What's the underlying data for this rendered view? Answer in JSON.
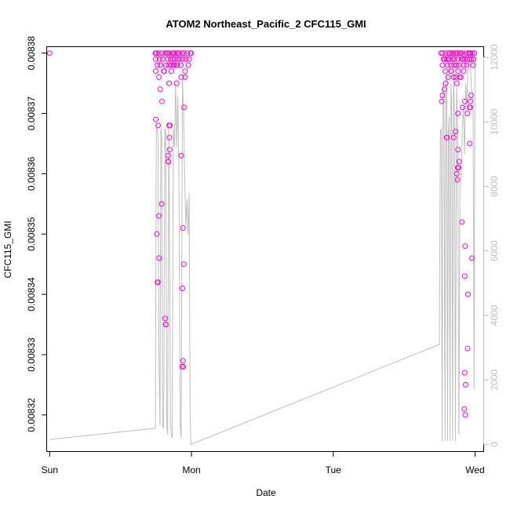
{
  "chart_data": {
    "type": "scatter",
    "title": "ATOM2 Northeast_Pacific_2 CFC115_GMI",
    "xlabel": "Date",
    "ylabel": "CFC115_GMI",
    "x_ticks": [
      "Sun",
      "Mon",
      "Tue",
      "Wed"
    ],
    "x_tick_values": [
      0,
      1,
      2,
      3
    ],
    "x_range": [
      -0.0185,
      3.0585
    ],
    "ylim": [
      0.008314,
      0.008381
    ],
    "y_ticks": [
      "0.00832",
      "0.00833",
      "0.00834",
      "0.00835",
      "0.00836",
      "0.00837",
      "0.00838"
    ],
    "y_tick_values": [
      0.00832,
      0.00833,
      0.00834,
      0.00835,
      0.00836,
      0.00837,
      0.00838
    ],
    "y2_range": [
      -210,
      12320
    ],
    "y2_ticks": [
      "0",
      "2000",
      "4000",
      "6000",
      "8000",
      "10000",
      "12000"
    ],
    "y2_tick_values": [
      0,
      2000,
      4000,
      6000,
      8000,
      10000,
      12000
    ],
    "grid": false,
    "series": [
      {
        "role": "points",
        "color": "#ff00cc",
        "points": [
          [
            0.0,
            0.00838
          ],
          [
            0.745,
            0.00838
          ],
          [
            0.748,
            0.008379
          ],
          [
            0.752,
            0.00838
          ],
          [
            0.76,
            0.008378
          ],
          [
            0.768,
            0.00838
          ],
          [
            0.775,
            0.008379
          ],
          [
            0.782,
            0.008378
          ],
          [
            0.79,
            0.00838
          ],
          [
            0.798,
            0.008379
          ],
          [
            0.805,
            0.008377
          ],
          [
            0.812,
            0.00838
          ],
          [
            0.82,
            0.008378
          ],
          [
            0.826,
            0.00838
          ],
          [
            0.832,
            0.008379
          ],
          [
            0.84,
            0.008378
          ],
          [
            0.846,
            0.00838
          ],
          [
            0.852,
            0.008379
          ],
          [
            0.858,
            0.008378
          ],
          [
            0.866,
            0.00838
          ],
          [
            0.872,
            0.00838
          ],
          [
            0.88,
            0.008379
          ],
          [
            0.888,
            0.00838
          ],
          [
            0.895,
            0.008378
          ],
          [
            0.902,
            0.008379
          ],
          [
            0.91,
            0.00838
          ],
          [
            0.918,
            0.008379
          ],
          [
            0.925,
            0.008378
          ],
          [
            0.932,
            0.00838
          ],
          [
            0.94,
            0.008379
          ],
          [
            0.948,
            0.00838
          ],
          [
            0.955,
            0.008377
          ],
          [
            0.962,
            0.008379
          ],
          [
            0.97,
            0.00838
          ],
          [
            0.978,
            0.008378
          ],
          [
            0.985,
            0.008379
          ],
          [
            0.993,
            0.00838
          ],
          [
            0.998,
            0.00838
          ],
          [
            0.878,
            0.008378
          ],
          [
            0.904,
            0.00838
          ],
          [
            0.83,
            0.00838
          ],
          [
            0.868,
            0.008379
          ],
          [
            0.748,
            0.008377
          ],
          [
            0.77,
            0.008376
          ],
          [
            0.808,
            0.008377
          ],
          [
            0.858,
            0.008377
          ],
          [
            0.895,
            0.008375
          ],
          [
            0.928,
            0.008376
          ],
          [
            0.78,
            0.008374
          ],
          [
            0.842,
            0.008375
          ],
          [
            0.874,
            0.008378
          ],
          [
            0.955,
            0.008376
          ],
          [
            0.898,
            0.008378
          ],
          [
            0.748,
            0.008369
          ],
          [
            0.765,
            0.008368
          ],
          [
            0.792,
            0.008372
          ],
          [
            0.845,
            0.008366
          ],
          [
            0.848,
            0.008368
          ],
          [
            0.847,
            0.008364
          ],
          [
            0.836,
            0.008363
          ],
          [
            0.838,
            0.008362
          ],
          [
            0.948,
            0.008371
          ],
          [
            0.928,
            0.008363
          ],
          [
            0.842,
            0.008368
          ],
          [
            0.836,
            0.008362
          ],
          [
            0.79,
            0.008355
          ],
          [
            0.77,
            0.008353
          ],
          [
            0.756,
            0.00835
          ],
          [
            0.772,
            0.008346
          ],
          [
            0.762,
            0.008342
          ],
          [
            0.76,
            0.008342
          ],
          [
            0.764,
            0.008342
          ],
          [
            0.815,
            0.008336
          ],
          [
            0.818,
            0.008335
          ],
          [
            0.82,
            0.008335
          ],
          [
            0.94,
            0.008351
          ],
          [
            0.946,
            0.008345
          ],
          [
            0.936,
            0.008341
          ],
          [
            0.94,
            0.008329
          ],
          [
            0.942,
            0.008328
          ],
          [
            0.934,
            0.008328
          ],
          [
            2.76,
            0.00838
          ],
          [
            2.77,
            0.00838
          ],
          [
            2.778,
            0.008379
          ],
          [
            2.785,
            0.008379
          ],
          [
            2.792,
            0.00838
          ],
          [
            2.8,
            0.008379
          ],
          [
            2.806,
            0.008378
          ],
          [
            2.812,
            0.00838
          ],
          [
            2.818,
            0.008379
          ],
          [
            2.824,
            0.00838
          ],
          [
            2.83,
            0.008378
          ],
          [
            2.836,
            0.00838
          ],
          [
            2.842,
            0.008379
          ],
          [
            2.848,
            0.00838
          ],
          [
            2.855,
            0.008379
          ],
          [
            2.862,
            0.00838
          ],
          [
            2.868,
            0.008378
          ],
          [
            2.874,
            0.00838
          ],
          [
            2.88,
            0.008379
          ],
          [
            2.886,
            0.008378
          ],
          [
            2.892,
            0.00838
          ],
          [
            2.898,
            0.00838
          ],
          [
            2.905,
            0.008379
          ],
          [
            2.912,
            0.00838
          ],
          [
            2.92,
            0.008378
          ],
          [
            2.928,
            0.008379
          ],
          [
            2.936,
            0.00838
          ],
          [
            2.944,
            0.008379
          ],
          [
            2.952,
            0.00838
          ],
          [
            2.96,
            0.00838
          ],
          [
            2.968,
            0.00838
          ],
          [
            2.975,
            0.008379
          ],
          [
            2.982,
            0.00838
          ],
          [
            2.99,
            0.008379
          ],
          [
            2.996,
            0.00838
          ],
          [
            2.77,
            0.008378
          ],
          [
            2.79,
            0.008377
          ],
          [
            2.81,
            0.008376
          ],
          [
            2.83,
            0.008377
          ],
          [
            2.85,
            0.008376
          ],
          [
            2.866,
            0.008376
          ],
          [
            2.88,
            0.008377
          ],
          [
            2.9,
            0.008376
          ],
          [
            2.92,
            0.008377
          ],
          [
            2.942,
            0.008378
          ],
          [
            2.962,
            0.008379
          ],
          [
            2.986,
            0.008378
          ],
          [
            2.794,
            0.008375
          ],
          [
            2.892,
            0.008376
          ],
          [
            2.872,
            0.008375
          ],
          [
            2.832,
            0.008377
          ],
          [
            2.852,
            0.008378
          ],
          [
            2.916,
            0.008379
          ],
          [
            2.812,
            0.008379
          ],
          [
            2.77,
            0.008373
          ],
          [
            2.765,
            0.008372
          ],
          [
            2.784,
            0.008374
          ],
          [
            2.912,
            0.008371
          ],
          [
            2.928,
            0.008372
          ],
          [
            2.972,
            0.008373
          ],
          [
            2.966,
            0.008372
          ],
          [
            2.962,
            0.008371
          ],
          [
            2.946,
            0.00837
          ],
          [
            2.966,
            0.008371
          ],
          [
            2.88,
            0.00837
          ],
          [
            2.8,
            0.008366
          ],
          [
            2.802,
            0.008366
          ],
          [
            2.85,
            0.008366
          ],
          [
            2.88,
            0.008364
          ],
          [
            2.884,
            0.008361
          ],
          [
            2.878,
            0.008361
          ],
          [
            2.872,
            0.00836
          ],
          [
            2.876,
            0.008359
          ],
          [
            2.888,
            0.008362
          ],
          [
            2.962,
            0.008365
          ],
          [
            2.862,
            0.008367
          ],
          [
            2.908,
            0.008352
          ],
          [
            2.93,
            0.008348
          ],
          [
            2.978,
            0.008346
          ],
          [
            2.928,
            0.008343
          ],
          [
            2.95,
            0.00834
          ],
          [
            2.948,
            0.008331
          ],
          [
            2.928,
            0.008327
          ],
          [
            2.934,
            0.008325
          ],
          [
            2.924,
            0.008321
          ],
          [
            2.932,
            0.00832
          ]
        ]
      },
      {
        "role": "line",
        "color": "#bebebe",
        "axis": "right",
        "points": [
          [
            0.0,
            150
          ],
          [
            0.746,
            500
          ],
          [
            0.752,
            9900
          ],
          [
            0.756,
            9850
          ],
          [
            0.764,
            9600
          ],
          [
            0.77,
            2800
          ],
          [
            0.778,
            600
          ],
          [
            0.784,
            9800
          ],
          [
            0.79,
            9500
          ],
          [
            0.796,
            600
          ],
          [
            0.804,
            500
          ],
          [
            0.812,
            9800
          ],
          [
            0.818,
            9700
          ],
          [
            0.826,
            600
          ],
          [
            0.832,
            300
          ],
          [
            0.84,
            9800
          ],
          [
            0.846,
            6400
          ],
          [
            0.852,
            600
          ],
          [
            0.858,
            300
          ],
          [
            0.864,
            200
          ],
          [
            0.872,
            9800
          ],
          [
            0.88,
            9200
          ],
          [
            0.888,
            11200
          ],
          [
            0.896,
            9200
          ],
          [
            0.904,
            10800
          ],
          [
            0.912,
            8200
          ],
          [
            0.92,
            600
          ],
          [
            0.928,
            200
          ],
          [
            0.936,
            11300
          ],
          [
            0.944,
            10400
          ],
          [
            0.952,
            8200
          ],
          [
            0.96,
            6800
          ],
          [
            0.968,
            7600
          ],
          [
            0.976,
            6500
          ],
          [
            0.984,
            7800
          ],
          [
            0.99,
            1000
          ],
          [
            0.996,
            0
          ],
          [
            2.748,
            3100
          ],
          [
            2.756,
            9700
          ],
          [
            2.762,
            9800
          ],
          [
            2.768,
            100
          ],
          [
            2.775,
            11200
          ],
          [
            2.782,
            10800
          ],
          [
            2.788,
            100
          ],
          [
            2.794,
            10400
          ],
          [
            2.8,
            11500
          ],
          [
            2.806,
            100
          ],
          [
            2.812,
            9600
          ],
          [
            2.818,
            10200
          ],
          [
            2.824,
            100
          ],
          [
            2.83,
            11200
          ],
          [
            2.836,
            10300
          ],
          [
            2.842,
            100
          ],
          [
            2.848,
            11500
          ],
          [
            2.855,
            10200
          ],
          [
            2.862,
            100
          ],
          [
            2.87,
            11100
          ],
          [
            2.878,
            9800
          ],
          [
            2.886,
            300
          ],
          [
            2.894,
            8000
          ],
          [
            2.902,
            8200
          ],
          [
            2.91,
            9800
          ],
          [
            2.918,
            10500
          ],
          [
            2.926,
            9000
          ],
          [
            2.934,
            11200
          ],
          [
            2.942,
            10500
          ],
          [
            2.95,
            11600
          ],
          [
            2.958,
            12000
          ],
          [
            2.966,
            11800
          ],
          [
            2.976,
            11000
          ],
          [
            2.986,
            10800
          ],
          [
            2.994,
            1700
          ],
          [
            3.0,
            12000
          ]
        ]
      }
    ]
  }
}
